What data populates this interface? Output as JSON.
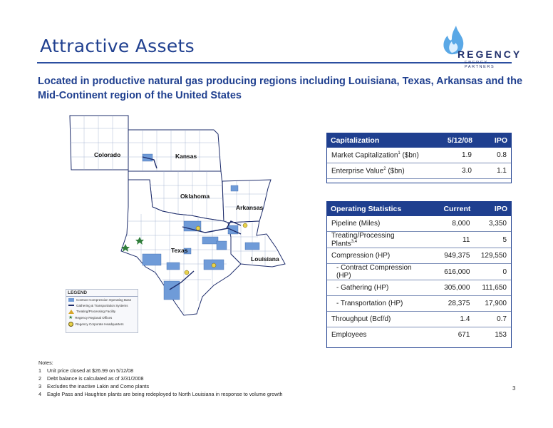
{
  "header": {
    "title": "Attractive Assets",
    "logo_word": "REGENCY",
    "logo_sub": "ENERGY PARTNERS"
  },
  "subtitle": "Located in productive natural gas producing regions including Louisiana, Texas, Arkansas and the Mid-Continent region of the United States",
  "map": {
    "states": [
      "Colorado",
      "Kansas",
      "Oklahoma",
      "Arkansas",
      "Texas",
      "Louisiana"
    ],
    "legend": {
      "title": "LEGEND",
      "items": [
        "Contract Compression Operating Base",
        "Gathering & Transportation Systems",
        "Treating/Processing Facility",
        "Regency Regional Offices",
        "Regency Corporate Headquarters"
      ]
    },
    "colors": {
      "asset_fill": "#6f9bd8",
      "state_line": "#1d2c6b",
      "pipeline": "#1d2c6b"
    }
  },
  "capitalization": {
    "headers": [
      "Capitalization",
      "5/12/08",
      "IPO"
    ],
    "rows": [
      {
        "label": "Market Capitalization",
        "sup": "1",
        "unit": " ($bn)",
        "current": "1.9",
        "ipo": "0.8"
      },
      {
        "label": "Enterprise Value",
        "sup": "2",
        "unit": " ($bn)",
        "current": "3.0",
        "ipo": "1.1"
      }
    ]
  },
  "operating": {
    "headers": [
      "Operating Statistics",
      "Current",
      "IPO"
    ],
    "rows": [
      {
        "label": "Pipeline (Miles)",
        "sup": "",
        "current": "8,000",
        "ipo": "3,350"
      },
      {
        "label": "Treating/Processing Plants",
        "sup": "3,4",
        "current": "11",
        "ipo": "5"
      },
      {
        "label": "Compression (HP)",
        "sup": "",
        "current": "949,375",
        "ipo": "129,550"
      },
      {
        "label": "- Contract Compression (HP)",
        "sup": "",
        "current": "616,000",
        "ipo": "0"
      },
      {
        "label": "- Gathering (HP)",
        "sup": "",
        "current": "305,000",
        "ipo": "111,650"
      },
      {
        "label": "- Transportation (HP)",
        "sup": "",
        "current": "28,375",
        "ipo": "17,900"
      },
      {
        "label": "Throughput (Bcf/d)",
        "sup": "",
        "current": "1.4",
        "ipo": "0.7"
      },
      {
        "label": "Employees",
        "sup": "",
        "current": "671",
        "ipo": "153"
      }
    ]
  },
  "notes": {
    "title": "Notes:",
    "items": [
      {
        "n": "1",
        "text": "Unit price closed at $26.99 on 5/12/08"
      },
      {
        "n": "2",
        "text": "Debt balance is calculated as of 3/31/2008"
      },
      {
        "n": "3",
        "text": "Excludes the inactive Lakin and Como plants"
      },
      {
        "n": "4",
        "text": "Eagle Pass and Haughton plants are being redeployed to North Louisiana in response to volume growth"
      }
    ]
  },
  "page_number": "3"
}
